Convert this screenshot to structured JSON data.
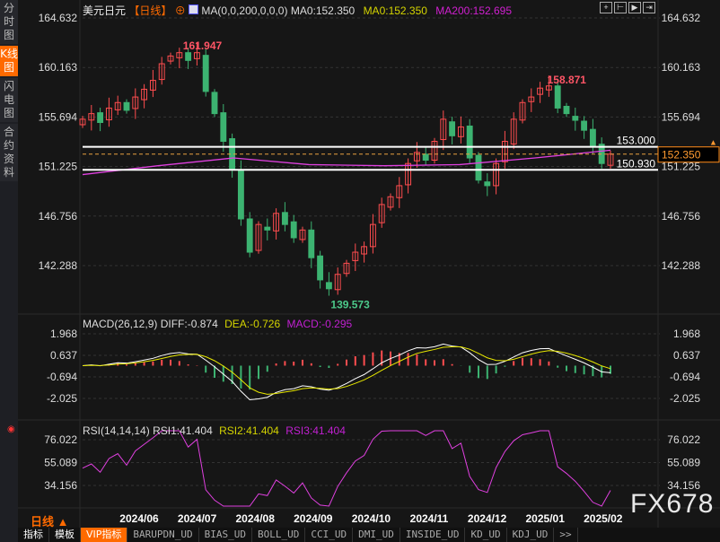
{
  "sidebar": {
    "items": [
      {
        "label": "分时图",
        "active": false
      },
      {
        "label": "K线图",
        "active": true
      },
      {
        "label": "闪电图",
        "active": false
      },
      {
        "label": "合约资料",
        "active": false
      }
    ]
  },
  "header": {
    "symbol": "美元日元",
    "period": "【日线】",
    "ma_params": "MA(0,0,200,0,0,0)",
    "ma0_white": "MA0:152.350",
    "ma0": "MA0:152.350",
    "ma200": "MA200:152.695"
  },
  "toolbar_icons": [
    "crosshair-icon",
    "zoom-range-icon",
    "play-icon",
    "scroll-end-icon"
  ],
  "price_axis": {
    "ticks": [
      "164.632",
      "160.163",
      "155.694",
      "151.225",
      "146.756",
      "142.288"
    ],
    "current": "152.350"
  },
  "annotations": {
    "high": "161.947",
    "high2": "158.871",
    "low": "139.573",
    "line1": "153.000",
    "line2": "150.930"
  },
  "macd": {
    "title": "MACD(26,12,9)",
    "diff": "DIFF:-0.874",
    "dea": "DEA:-0.726",
    "macd": "MACD:-0.295",
    "ticks": [
      "1.968",
      "0.637",
      "-0.694",
      "-2.025"
    ]
  },
  "rsi": {
    "title": "RSI(14,14,14)",
    "rsi1": "RSI1:41.404",
    "rsi2": "RSI2:41.404",
    "rsi3": "RSI3:41.404",
    "ticks": [
      "76.022",
      "55.089",
      "34.156"
    ]
  },
  "period_label": "日线 ▲",
  "watermark": "FX678",
  "tabs": [
    "指标",
    "模板",
    "VIP指标",
    "BARUPDN_UD",
    "BIAS_UD",
    "BOLL_UD",
    "CCI_UD",
    "DMI_UD",
    "INSIDE_UD",
    "KD_UD",
    "KDJ_UD",
    ">>"
  ],
  "colors": {
    "up": "#ff4d4f",
    "down": "#3cb371",
    "ma200": "#e040e0",
    "accent": "#ff6a00",
    "diff": "#ffffff",
    "dea": "#e8e800"
  },
  "chart_data": {
    "type": "candlestick",
    "x_ticks": [
      "2024/06",
      "2024/07",
      "2024/08",
      "2024/09",
      "2024/10",
      "2024/11",
      "2024/12",
      "2025/01",
      "2025/02"
    ],
    "ylim": [
      142.288,
      164.632
    ],
    "closes": [
      155.5,
      156,
      155.2,
      156.5,
      157,
      156.3,
      157.5,
      158.2,
      159,
      160.5,
      161.2,
      161.5,
      160.8,
      161.5,
      158,
      156,
      153.5,
      151,
      146.5,
      143.5,
      146,
      145.5,
      147,
      146,
      144.8,
      145.5,
      143,
      141,
      140.2,
      141.5,
      142.5,
      143.5,
      144,
      146,
      147.8,
      148.5,
      149.5,
      151.5,
      152.5,
      151.8,
      153.5,
      155.5,
      154,
      154.8,
      152,
      150,
      149.5,
      151.5,
      153.5,
      155.5,
      157,
      157.5,
      158.3,
      158.5,
      156.5,
      156,
      155.4,
      154.5,
      153,
      151.5,
      152.35
    ],
    "ma200": [
      150.5,
      151.3,
      152,
      151.4,
      151.3,
      151.4,
      152,
      152.7
    ],
    "horizontal_lines": [
      153.0,
      150.93
    ],
    "current_price": 152.35
  }
}
